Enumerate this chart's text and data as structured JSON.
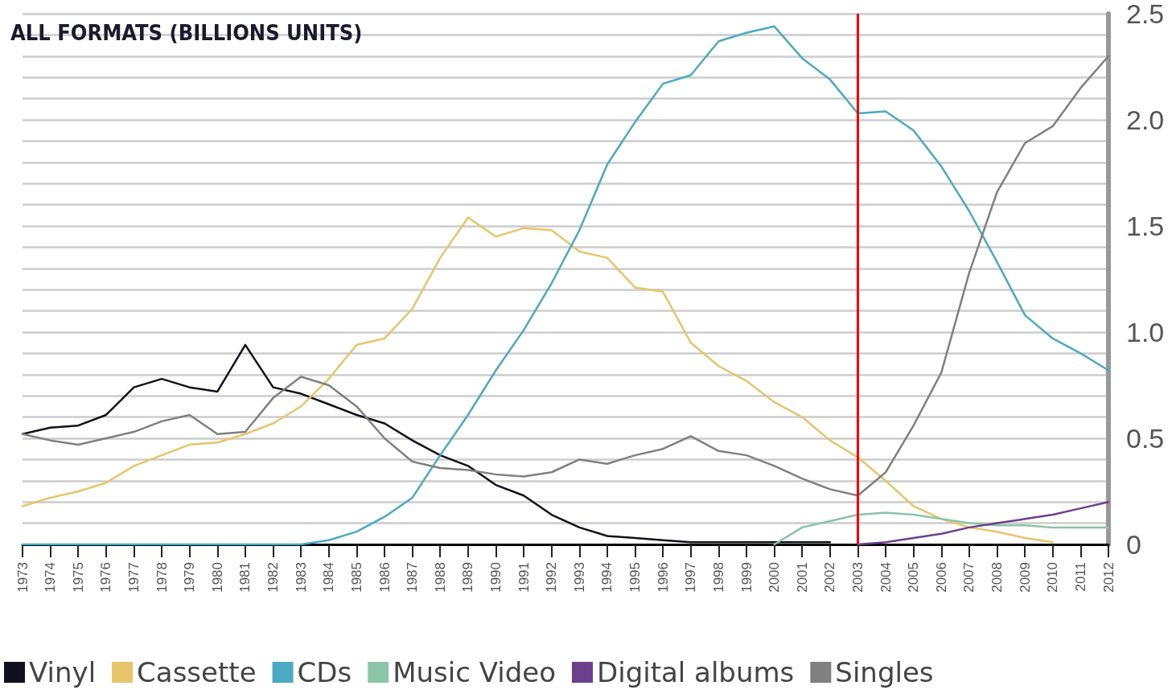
{
  "chart_data": {
    "type": "line",
    "title": "ALL FORMATS (BILLIONS UNITS)",
    "categories": [
      "1973",
      "1974",
      "1975",
      "1976",
      "1977",
      "1978",
      "1979",
      "1980",
      "1981",
      "1982",
      "1983",
      "1984",
      "1985",
      "1986",
      "1987",
      "1988",
      "1989",
      "1990",
      "1991",
      "1992",
      "1993",
      "1994",
      "1995",
      "1996",
      "1997",
      "1998",
      "1999",
      "2000",
      "2001",
      "2002",
      "2003",
      "2004",
      "2005",
      "2006",
      "2007",
      "2008",
      "2009",
      "2010",
      "2011",
      "2012"
    ],
    "series": [
      {
        "name": "Vinyl",
        "color": "#10101e",
        "values": [
          0.52,
          0.55,
          0.56,
          0.61,
          0.74,
          0.78,
          0.74,
          0.72,
          0.94,
          0.74,
          0.71,
          0.66,
          0.61,
          0.57,
          0.49,
          0.42,
          0.37,
          0.28,
          0.23,
          0.14,
          0.08,
          0.04,
          0.03,
          0.02,
          0.01,
          0.01,
          0.01,
          0.01,
          0.01,
          0.01,
          null,
          null,
          null,
          null,
          null,
          null,
          null,
          null,
          null,
          null
        ]
      },
      {
        "name": "Cassette",
        "color": "#e8c46a",
        "values": [
          0.18,
          0.22,
          0.25,
          0.29,
          0.37,
          0.42,
          0.47,
          0.48,
          0.52,
          0.57,
          0.65,
          0.78,
          0.94,
          0.97,
          1.11,
          1.35,
          1.54,
          1.45,
          1.49,
          1.48,
          1.38,
          1.35,
          1.21,
          1.19,
          0.95,
          0.84,
          0.77,
          0.67,
          0.6,
          0.49,
          0.41,
          0.3,
          0.18,
          0.12,
          0.08,
          0.06,
          0.03,
          0.01,
          null,
          null
        ]
      },
      {
        "name": "CDs",
        "color": "#4aaac4",
        "values": [
          0,
          0,
          0,
          0,
          0,
          0,
          0,
          0,
          0,
          0,
          0,
          0.02,
          0.06,
          0.13,
          0.22,
          0.42,
          0.61,
          0.82,
          1.01,
          1.23,
          1.48,
          1.79,
          1.99,
          2.17,
          2.21,
          2.37,
          2.41,
          2.44,
          2.29,
          2.19,
          2.03,
          2.04,
          1.95,
          1.78,
          1.57,
          1.33,
          1.08,
          0.97,
          0.9,
          0.82
        ]
      },
      {
        "name": "Music Video",
        "color": "#8cc4a8",
        "values": [
          null,
          null,
          null,
          null,
          null,
          null,
          null,
          null,
          null,
          null,
          null,
          null,
          null,
          null,
          null,
          null,
          null,
          null,
          null,
          null,
          null,
          null,
          null,
          null,
          null,
          null,
          null,
          0,
          0.08,
          0.11,
          0.14,
          0.15,
          0.14,
          0.12,
          0.1,
          0.09,
          0.09,
          0.08,
          0.08,
          0.08
        ]
      },
      {
        "name": "Digital albums",
        "color": "#6e3f8c",
        "values": [
          null,
          null,
          null,
          null,
          null,
          null,
          null,
          null,
          null,
          null,
          null,
          null,
          null,
          null,
          null,
          null,
          null,
          null,
          null,
          null,
          null,
          null,
          null,
          null,
          null,
          null,
          null,
          null,
          null,
          null,
          0,
          0.01,
          0.03,
          0.05,
          0.08,
          0.1,
          0.12,
          0.14,
          0.17,
          0.2
        ]
      },
      {
        "name": "Singles",
        "color": "#808080",
        "values": [
          0.52,
          0.49,
          0.47,
          0.5,
          0.53,
          0.58,
          0.61,
          0.52,
          0.53,
          0.69,
          0.79,
          0.75,
          0.65,
          0.5,
          0.39,
          0.36,
          0.35,
          0.33,
          0.32,
          0.34,
          0.4,
          0.38,
          0.42,
          0.45,
          0.51,
          0.44,
          0.42,
          0.37,
          0.31,
          0.26,
          0.23,
          0.34,
          0.56,
          0.81,
          1.28,
          1.66,
          1.89,
          1.97,
          2.15,
          2.3
        ]
      }
    ],
    "ylim": [
      0,
      2.5
    ],
    "yticks": [
      0,
      {
        "value": 0.1,
        "label": null
      },
      {
        "value": 0.2,
        "label": null
      },
      {
        "value": 0.3,
        "label": null
      },
      {
        "value": 0.4,
        "label": null
      },
      0.5,
      {
        "value": 0.6,
        "label": null
      },
      {
        "value": 0.7,
        "label": null
      },
      {
        "value": 0.8,
        "label": null
      },
      {
        "value": 0.9,
        "label": null
      },
      {
        "value": 1,
        "label": "1.0"
      },
      {
        "value": 1.1,
        "label": null
      },
      {
        "value": 1.2,
        "label": null
      },
      {
        "value": 1.3,
        "label": null
      },
      {
        "value": 1.4,
        "label": null
      },
      1.5,
      {
        "value": 1.6,
        "label": null
      },
      {
        "value": 1.7,
        "label": null
      },
      {
        "value": 1.8,
        "label": null
      },
      {
        "value": 1.9,
        "label": null
      },
      {
        "value": 2,
        "label": "2.0"
      },
      {
        "value": 2.1,
        "label": null
      },
      {
        "value": 2.2,
        "label": null
      },
      {
        "value": 2.3,
        "label": null
      },
      {
        "value": 2.4,
        "label": null
      },
      2.5
    ],
    "ref_lines": [
      {
        "axis": "x",
        "value": "2003",
        "color": "#ff0000"
      }
    ],
    "grid": "y",
    "legend": "bottom",
    "marker": "none",
    "line_style": "solid"
  }
}
